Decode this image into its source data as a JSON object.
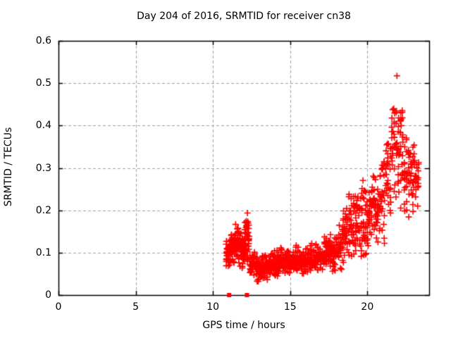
{
  "figure": {
    "background": "#ffffff",
    "foreground": "#000000"
  },
  "chart_data": {
    "type": "scatter",
    "title": "Day 204 of 2016, SRMTID for receiver cn38",
    "xlabel": "GPS time / hours",
    "ylabel": "SRMTID / TECUs",
    "xlim": [
      0,
      24
    ],
    "ylim": [
      0,
      0.6
    ],
    "x_ticks": {
      "values": [
        0,
        5,
        10,
        15,
        20
      ],
      "labels": [
        "0",
        "5",
        "10",
        "15",
        "20"
      ]
    },
    "y_ticks": {
      "values": [
        0,
        0.1,
        0.2,
        0.3,
        0.4,
        0.5,
        0.6
      ],
      "labels": [
        "0",
        "0.1",
        "0.2",
        "0.3",
        "0.4",
        "0.5",
        "0.6"
      ]
    },
    "grid": {
      "shown": true,
      "color": "#a0a0a0",
      "dash": [
        4,
        3
      ]
    },
    "legend": "none",
    "marker": {
      "shape": "plus",
      "color": "#ff0000",
      "size": 9,
      "stroke": 1.6
    },
    "seed": 77,
    "x_jitter": 0.09,
    "axis_points": [
      {
        "x": 11.05,
        "y": 0
      },
      {
        "x": 12.2,
        "y": 0
      }
    ],
    "clusters": [
      {
        "t": [
          10.85,
          11.15
        ],
        "y": [
          0.06,
          0.15
        ],
        "n": 45,
        "cols": 3
      },
      {
        "t": [
          11.15,
          11.45
        ],
        "y": [
          0.07,
          0.16
        ],
        "n": 45,
        "cols": 3
      },
      {
        "t": [
          11.45,
          11.75
        ],
        "y": [
          0.07,
          0.17
        ],
        "n": 40,
        "cols": 3
      },
      {
        "t": [
          11.75,
          12.05
        ],
        "y": [
          0.06,
          0.15
        ],
        "n": 40,
        "cols": 3
      },
      {
        "t": [
          12.05,
          12.35
        ],
        "y": [
          0.07,
          0.2
        ],
        "n": 45,
        "cols": 3
      },
      {
        "t": [
          12.35,
          12.75
        ],
        "y": [
          0.04,
          0.11
        ],
        "n": 40,
        "cols": 3
      },
      {
        "t": [
          12.75,
          13.15
        ],
        "y": [
          0.03,
          0.09
        ],
        "n": 50,
        "cols": 3
      },
      {
        "t": [
          13.15,
          13.55
        ],
        "y": [
          0.03,
          0.1
        ],
        "n": 50,
        "cols": 3
      },
      {
        "t": [
          13.55,
          13.95
        ],
        "y": [
          0.04,
          0.1
        ],
        "n": 50,
        "cols": 3
      },
      {
        "t": [
          13.95,
          14.35
        ],
        "y": [
          0.04,
          0.11
        ],
        "n": 50,
        "cols": 3
      },
      {
        "t": [
          14.35,
          14.75
        ],
        "y": [
          0.04,
          0.12
        ],
        "n": 45,
        "cols": 3
      },
      {
        "t": [
          14.75,
          15.15
        ],
        "y": [
          0.04,
          0.11
        ],
        "n": 45,
        "cols": 3
      },
      {
        "t": [
          15.15,
          15.55
        ],
        "y": [
          0.05,
          0.12
        ],
        "n": 45,
        "cols": 3
      },
      {
        "t": [
          15.55,
          15.95
        ],
        "y": [
          0.05,
          0.11
        ],
        "n": 40,
        "cols": 3
      },
      {
        "t": [
          15.95,
          16.35
        ],
        "y": [
          0.05,
          0.12
        ],
        "n": 40,
        "cols": 3
      },
      {
        "t": [
          16.35,
          16.75
        ],
        "y": [
          0.05,
          0.13
        ],
        "n": 40,
        "cols": 3
      },
      {
        "t": [
          16.75,
          17.15
        ],
        "y": [
          0.05,
          0.12
        ],
        "n": 38,
        "cols": 3
      },
      {
        "t": [
          17.15,
          17.55
        ],
        "y": [
          0.06,
          0.14
        ],
        "n": 38,
        "cols": 3
      },
      {
        "t": [
          17.55,
          17.95
        ],
        "y": [
          0.05,
          0.15
        ],
        "n": 38,
        "cols": 3
      },
      {
        "t": [
          17.95,
          18.35
        ],
        "y": [
          0.06,
          0.17
        ],
        "n": 38,
        "cols": 3
      },
      {
        "t": [
          18.35,
          18.75
        ],
        "y": [
          0.07,
          0.22
        ],
        "n": 38,
        "cols": 3
      },
      {
        "t": [
          18.75,
          19.15
        ],
        "y": [
          0.08,
          0.25
        ],
        "n": 36,
        "cols": 3
      },
      {
        "t": [
          19.15,
          19.55
        ],
        "y": [
          0.08,
          0.26
        ],
        "n": 34,
        "cols": 3
      },
      {
        "t": [
          19.55,
          19.95
        ],
        "y": [
          0.08,
          0.28
        ],
        "n": 34,
        "cols": 3
      },
      {
        "t": [
          19.95,
          20.35
        ],
        "y": [
          0.09,
          0.28
        ],
        "n": 36,
        "cols": 3
      },
      {
        "t": [
          20.35,
          20.75
        ],
        "y": [
          0.1,
          0.3
        ],
        "n": 36,
        "cols": 3
      },
      {
        "t": [
          20.75,
          21.15
        ],
        "y": [
          0.12,
          0.34
        ],
        "n": 36,
        "cols": 3
      },
      {
        "t": [
          21.15,
          21.55
        ],
        "y": [
          0.16,
          0.4
        ],
        "n": 32,
        "cols": 3
      },
      {
        "t": [
          21.55,
          21.95
        ],
        "y": [
          0.22,
          0.52
        ],
        "n": 36,
        "cols": 3
      },
      {
        "t": [
          21.95,
          22.35
        ],
        "y": [
          0.2,
          0.47
        ],
        "n": 36,
        "cols": 3
      },
      {
        "t": [
          22.35,
          22.75
        ],
        "y": [
          0.18,
          0.4
        ],
        "n": 32,
        "cols": 3
      },
      {
        "t": [
          22.75,
          23.1
        ],
        "y": [
          0.19,
          0.37
        ],
        "n": 28,
        "cols": 3
      },
      {
        "t": [
          23.1,
          23.35
        ],
        "y": [
          0.2,
          0.33
        ],
        "n": 18,
        "cols": 2
      }
    ]
  }
}
